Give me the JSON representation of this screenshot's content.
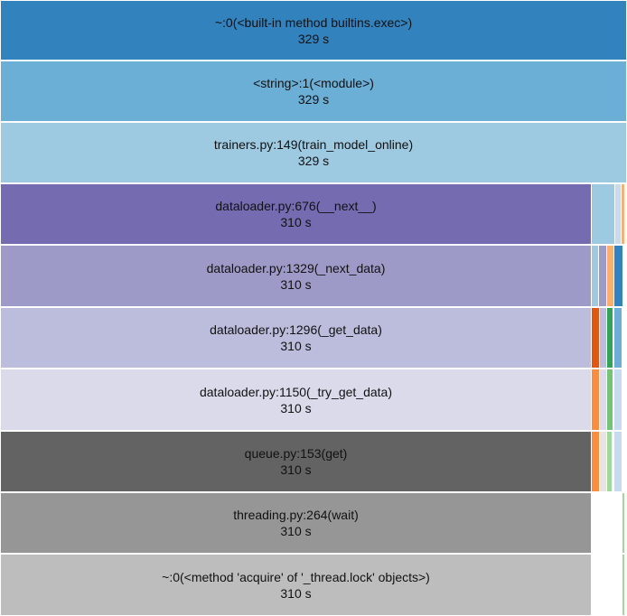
{
  "flamegraph": {
    "rows": [
      {
        "label": "~:0(<built-in method builtins.exec>)",
        "time": "329 s",
        "color": "#3182bd"
      },
      {
        "label": "<string>:1(<module>)",
        "time": "329 s",
        "color": "#6baed6"
      },
      {
        "label": "trainers.py:149(train_model_online)",
        "time": "329 s",
        "color": "#9ecae1"
      },
      {
        "label": "dataloader.py:676(__next__)",
        "time": "310 s",
        "color": "#756bb1"
      },
      {
        "label": "dataloader.py:1329(_next_data)",
        "time": "310 s",
        "color": "#9e9ac8"
      },
      {
        "label": "dataloader.py:1296(_get_data)",
        "time": "310 s",
        "color": "#bcbddc"
      },
      {
        "label": "dataloader.py:1150(_try_get_data)",
        "time": "310 s",
        "color": "#dadaeb"
      },
      {
        "label": "queue.py:153(get)",
        "time": "310 s",
        "color": "#636363"
      },
      {
        "label": "threading.py:264(wait)",
        "time": "310 s",
        "color": "#969696"
      },
      {
        "label": "~:0(<method 'acquire' of '_thread.lock' objects>)",
        "time": "310 s",
        "color": "#bdbdbd"
      }
    ],
    "slivers": [
      {
        "row": 3,
        "color": "#9ecae1"
      },
      {
        "row": 3,
        "color": "#c6dbef"
      },
      {
        "row": 3,
        "color": "#fdae6b"
      },
      {
        "row": 4,
        "color": "#9ecae1"
      },
      {
        "row": 4,
        "color": "#9e9ac8"
      },
      {
        "row": 4,
        "color": "#fdae6b"
      },
      {
        "row": 4,
        "color": "#3182bd"
      },
      {
        "row": 5,
        "color": "#e6550d"
      },
      {
        "row": 5,
        "color": "#bcbddc"
      },
      {
        "row": 5,
        "color": "#31a354"
      },
      {
        "row": 5,
        "color": "#6baed6"
      },
      {
        "row": 6,
        "color": "#fd8d3c"
      },
      {
        "row": 6,
        "color": "#dadaeb"
      },
      {
        "row": 6,
        "color": "#74c476"
      },
      {
        "row": 6,
        "color": "#c6dbef"
      },
      {
        "row": 7,
        "color": "#fd8d3c"
      },
      {
        "row": 7,
        "color": "#e5e5e5"
      },
      {
        "row": 7,
        "color": "#a1d99b"
      },
      {
        "row": 7,
        "color": "#c6dbef"
      },
      {
        "row": 8,
        "color": "#a1d99b"
      },
      {
        "row": 9,
        "color": "#a1d99b"
      }
    ]
  }
}
